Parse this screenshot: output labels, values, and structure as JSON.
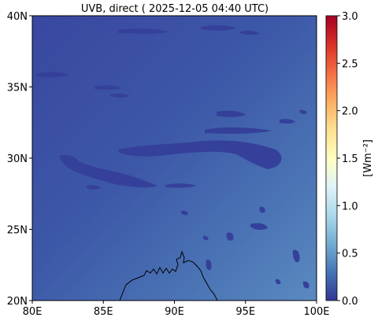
{
  "title": "UVB, direct ( 2025-12-05 04:40 UTC)",
  "x_ticks": [
    "80E",
    "85E",
    "90E",
    "95E",
    "100E"
  ],
  "y_ticks": [
    "40N",
    "35N",
    "30N",
    "25N",
    "20N"
  ],
  "colorbar": {
    "label": "[Wm⁻²]",
    "ticks": [
      "3.0",
      "2.5",
      "2.0",
      "1.5",
      "1.0",
      "0.5",
      "0.0"
    ],
    "colors": [
      "#a50026",
      "#d73027",
      "#f46d43",
      "#fdae61",
      "#fee090",
      "#ffffbf",
      "#e0f3f8",
      "#abd9e9",
      "#74add1",
      "#4575b4",
      "#313695"
    ]
  },
  "chart_data": {
    "type": "heatmap",
    "title": "UVB, direct ( 2025-12-05 04:40 UTC)",
    "xlim": [
      80,
      100
    ],
    "ylim": [
      20,
      40
    ],
    "x_ticks": [
      80,
      85,
      90,
      95,
      100
    ],
    "y_ticks": [
      20,
      25,
      30,
      35,
      40
    ],
    "colorbar_range": [
      0.0,
      3.0
    ],
    "colorbar_ticks": [
      0.0,
      0.5,
      1.0,
      1.5,
      2.0,
      2.5,
      3.0
    ],
    "colormap": "RdYlBu_r",
    "colorbar_label": "[Wm⁻²]"
  }
}
